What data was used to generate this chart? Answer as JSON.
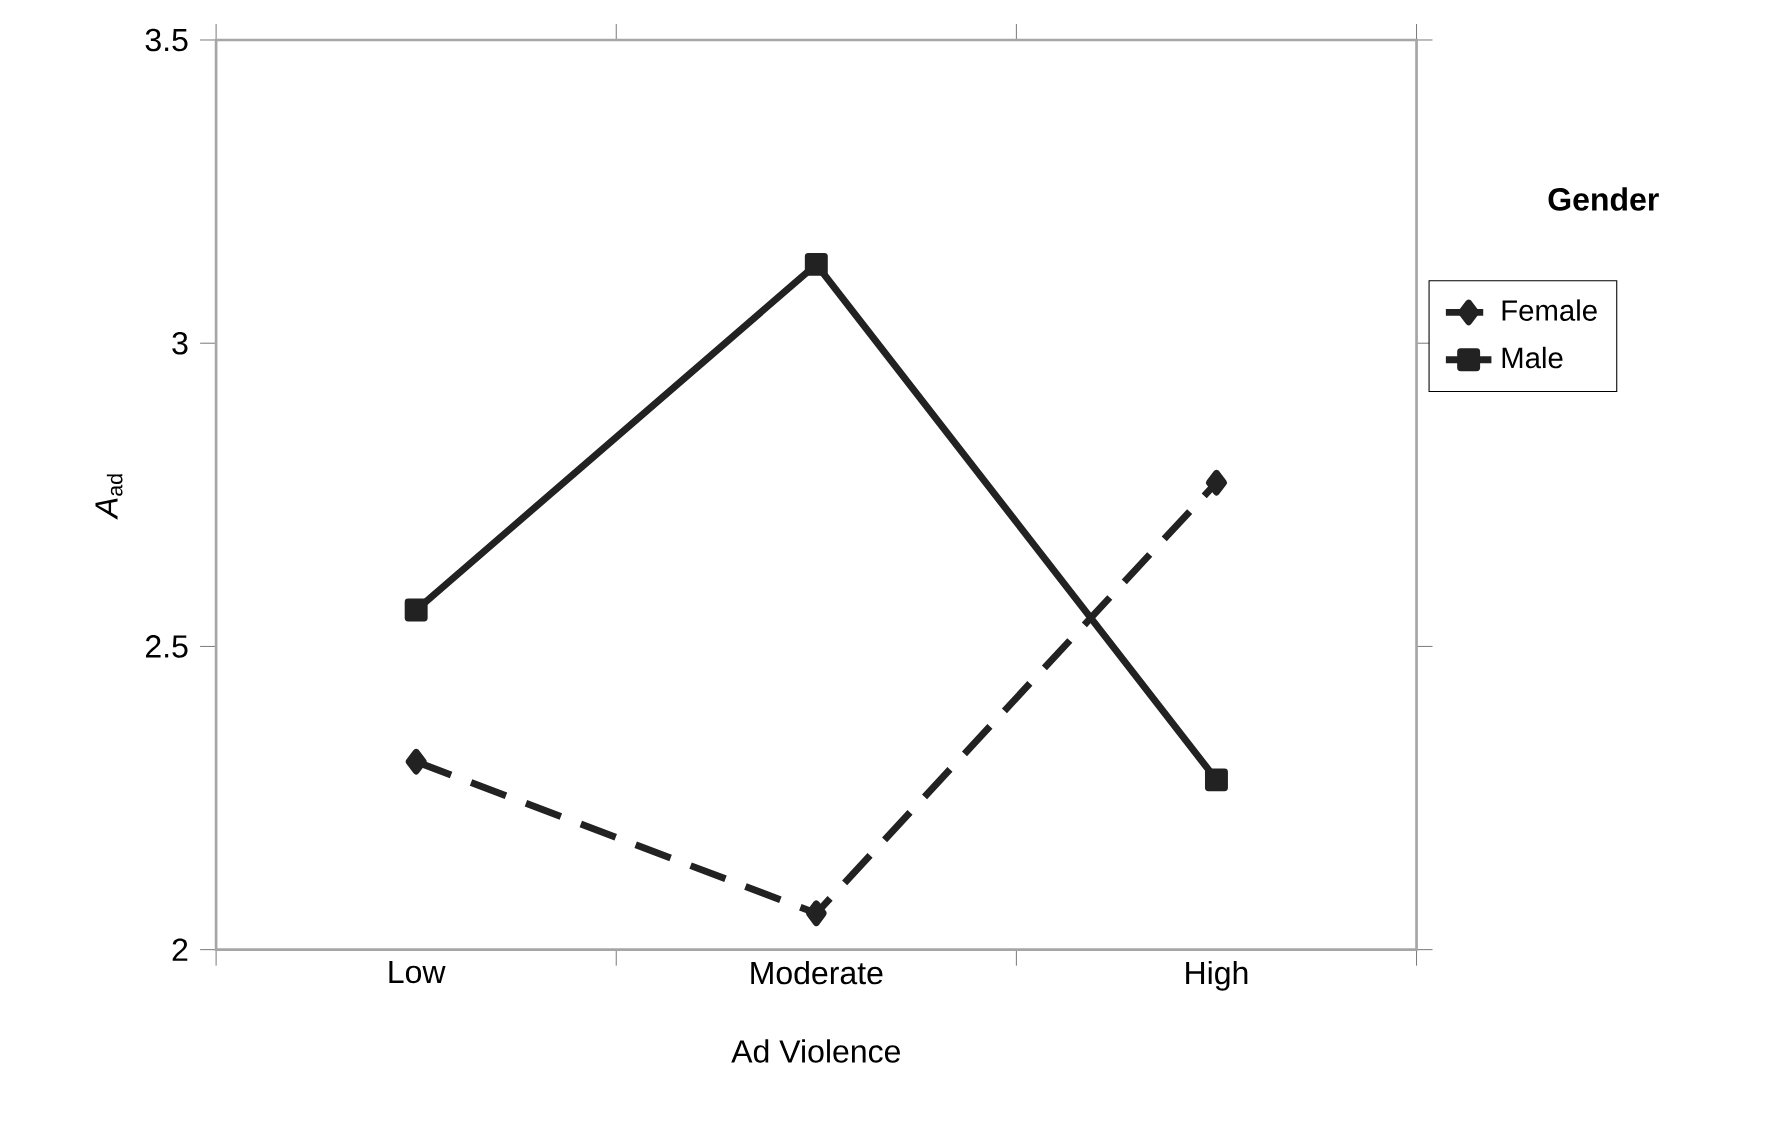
{
  "chart_data": {
    "type": "line",
    "xlabel": "Ad Violence",
    "ylabel": "*A*$_{ad}$",
    "legend_title": "Gender",
    "legend": "right",
    "grid": false,
    "categories": [
      "Low",
      "Moderate",
      "High"
    ],
    "ylim": [
      2,
      3.5
    ],
    "yticks": [
      2,
      2.5,
      3,
      3.5
    ],
    "series": [
      {
        "name": "Female",
        "color": "#222222",
        "marker": "diamond",
        "line_style": "dashed",
        "values": [
          2.31,
          2.06,
          2.77
        ]
      },
      {
        "name": "Male",
        "color": "#222222",
        "marker": "square",
        "line_style": "solid",
        "values": [
          2.56,
          3.13,
          2.28
        ]
      }
    ]
  }
}
